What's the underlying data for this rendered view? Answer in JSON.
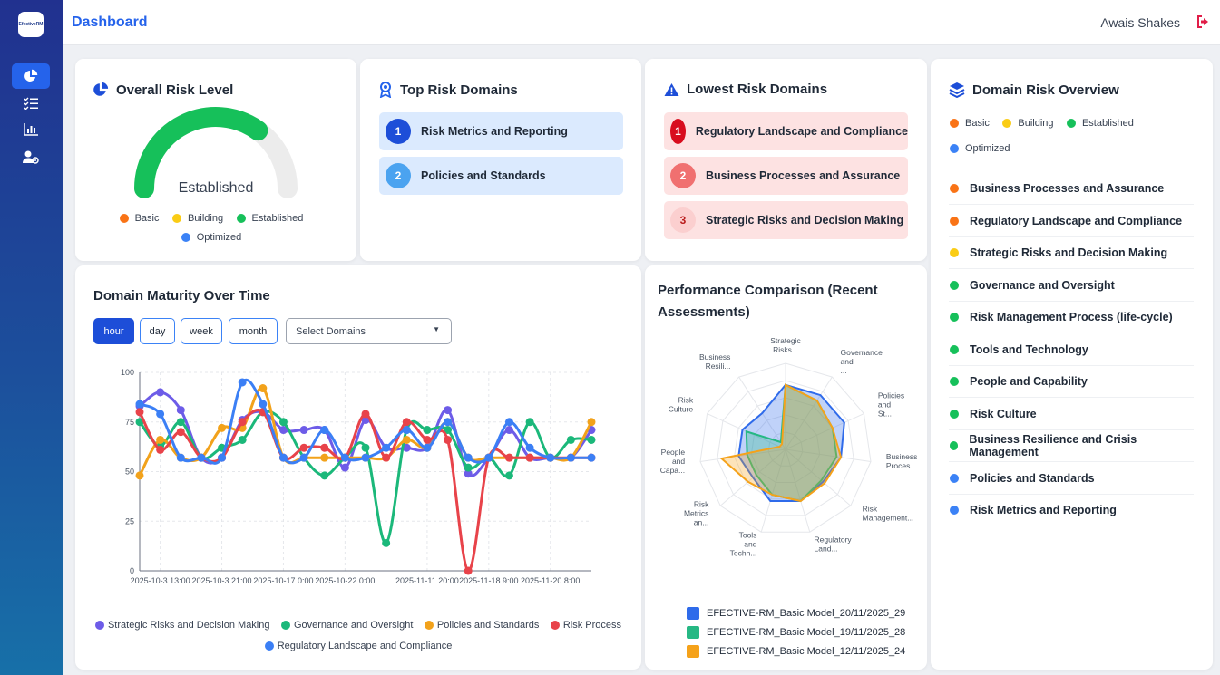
{
  "app": {
    "logo_text": "EfectiveRM"
  },
  "colors": {
    "basic": "#f97316",
    "building": "#facc15",
    "established": "#16c05a",
    "optimized": "#3b82f6",
    "accent": "#2563eb"
  },
  "header": {
    "title": "Dashboard",
    "user_name": "Awais Shakes"
  },
  "sidebar": {
    "items": [
      {
        "icon": "pie-chart-icon"
      },
      {
        "icon": "checklist-icon"
      },
      {
        "icon": "bar-chart-icon"
      },
      {
        "icon": "user-settings-icon"
      }
    ]
  },
  "overall": {
    "title": "Overall Risk Level",
    "level": "Established",
    "gauge_fraction": 0.7,
    "legend": [
      "Basic",
      "Building",
      "Established",
      "Optimized"
    ]
  },
  "top_risk": {
    "title": "Top Risk Domains",
    "items": [
      {
        "rank": "1",
        "label": "Risk Metrics and Reporting"
      },
      {
        "rank": "2",
        "label": "Policies and Standards"
      }
    ]
  },
  "lowest_risk": {
    "title": "Lowest Risk Domains",
    "items": [
      {
        "rank": "1",
        "label": "Regulatory Landscape and Compliance"
      },
      {
        "rank": "2",
        "label": "Business Processes and Assurance"
      },
      {
        "rank": "3",
        "label": "Strategic Risks and Decision Making"
      }
    ]
  },
  "overview": {
    "title": "Domain Risk Overview",
    "legend": [
      "Basic",
      "Building",
      "Established",
      "Optimized"
    ],
    "items": [
      {
        "label": "Business Processes and Assurance",
        "level": "basic"
      },
      {
        "label": "Regulatory Landscape and Compliance",
        "level": "basic"
      },
      {
        "label": "Strategic Risks and Decision Making",
        "level": "building"
      },
      {
        "label": "Governance and Oversight",
        "level": "established"
      },
      {
        "label": "Risk Management Process (life-cycle)",
        "level": "established"
      },
      {
        "label": "Tools and Technology",
        "level": "established"
      },
      {
        "label": "People and Capability",
        "level": "established"
      },
      {
        "label": "Risk Culture",
        "level": "established"
      },
      {
        "label": "Business Resilience and Crisis Management",
        "level": "established"
      },
      {
        "label": "Policies and Standards",
        "level": "optimized"
      },
      {
        "label": "Risk Metrics and Reporting",
        "level": "optimized"
      }
    ]
  },
  "maturity": {
    "title": "Domain Maturity Over Time",
    "buttons": [
      "hour",
      "day",
      "week",
      "month"
    ],
    "active_button": "hour",
    "select_placeholder": "Select Domains",
    "legend": [
      "Strategic Risks and Decision Making",
      "Governance and Oversight",
      "Policies and Standards",
      "Risk Process",
      "Regulatory Landscape and Compliance"
    ]
  },
  "performance": {
    "title": "Performance Comparison (Recent Assessments)"
  },
  "chart_data": [
    {
      "type": "line",
      "title": "Domain Maturity Over Time",
      "ylim": [
        0,
        100
      ],
      "yticks": [
        0,
        25,
        50,
        75,
        100
      ],
      "x_count": 23,
      "xtick_labels": [
        {
          "index": 1,
          "label": "2025-10-3 13:00"
        },
        {
          "index": 4,
          "label": "2025-10-3 21:00"
        },
        {
          "index": 7,
          "label": "2025-10-17 0:00"
        },
        {
          "index": 10,
          "label": "2025-10-22 0:00"
        },
        {
          "index": 14,
          "label": "2025-11-11 20:00"
        },
        {
          "index": 17,
          "label": "2025-11-18 9:00"
        },
        {
          "index": 20,
          "label": "2025-11-20 8:00"
        }
      ],
      "series": [
        {
          "name": "Strategic Risks and Decision Making",
          "color": "#6d5ce8",
          "values": [
            83,
            90,
            81,
            57,
            57,
            76,
            80,
            71,
            71,
            71,
            52,
            76,
            62,
            62,
            62,
            81,
            49,
            57,
            71,
            57,
            57,
            57,
            71
          ]
        },
        {
          "name": "Governance and Oversight",
          "color": "#1bb87a",
          "values": [
            75,
            63,
            75,
            57,
            62,
            66,
            80,
            75,
            57,
            48,
            57,
            62,
            14,
            71,
            71,
            71,
            52,
            57,
            48,
            75,
            57,
            66,
            66
          ]
        },
        {
          "name": "Policies and Standards",
          "color": "#f2a21b",
          "values": [
            48,
            66,
            57,
            57,
            72,
            72,
            92,
            57,
            57,
            57,
            57,
            57,
            57,
            66,
            62,
            75,
            57,
            57,
            57,
            57,
            57,
            57,
            75
          ]
        },
        {
          "name": "Risk Process",
          "color": "#e8434a",
          "values": [
            80,
            61,
            70,
            57,
            57,
            75,
            80,
            57,
            62,
            62,
            57,
            79,
            57,
            75,
            66,
            66,
            0,
            57,
            57,
            57,
            57,
            57,
            57
          ]
        },
        {
          "name": "Regulatory Landscape and Compliance",
          "color": "#3b7ff5",
          "values": [
            84,
            79,
            57,
            57,
            57,
            95,
            84,
            57,
            57,
            71,
            57,
            57,
            62,
            71,
            62,
            75,
            57,
            57,
            75,
            62,
            57,
            57,
            57
          ]
        }
      ]
    },
    {
      "type": "radar",
      "title": "Performance Comparison (Recent Assessments)",
      "axes": [
        "Strategic Risks...",
        "Governance and ...",
        "Policies and St...",
        "Business Proces...",
        "Risk Management...",
        "Regulatory Land...",
        "Tools and Techn...",
        "Risk Metrics an...",
        "People and Capa...",
        "Risk Culture",
        "Business Resili..."
      ],
      "rmax": 4,
      "series": [
        {
          "name": "EFECTIVE-RM_Basic Model_20/11/2025_29",
          "color": "#2f6bea",
          "values": [
            3,
            3,
            3,
            2.6,
            2.3,
            2.5,
            2.5,
            2,
            2.2,
            2.2,
            2
          ]
        },
        {
          "name": "EFECTIVE-RM_Basic Model_19/11/2025_28",
          "color": "#26b884",
          "values": [
            3,
            2.7,
            2.4,
            2.4,
            2.2,
            2.5,
            2.2,
            1.8,
            1.8,
            2,
            0.4
          ]
        },
        {
          "name": "EFECTIVE-RM_Basic Model_12/11/2025_24",
          "color": "#f5a21a",
          "values": [
            3,
            2.7,
            2.4,
            2.6,
            2.4,
            2.5,
            2.2,
            2.3,
            3,
            0.3,
            0.3
          ]
        }
      ]
    }
  ]
}
